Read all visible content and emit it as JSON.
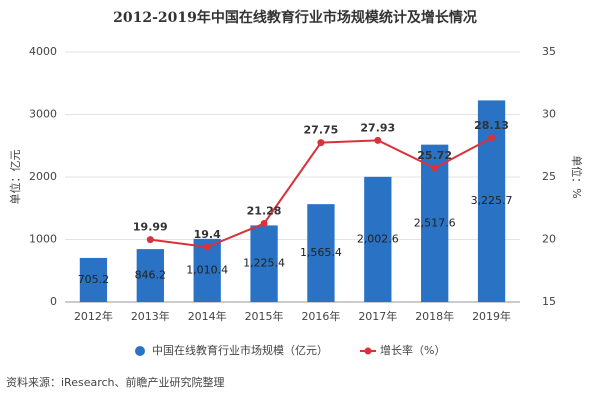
{
  "chart_data": {
    "type": "bar",
    "title": "2012-2019年中国在线教育行业市场规模统计及增长情况",
    "ylabel": "单位：亿元",
    "y2label": "单位：%",
    "categories": [
      "2012年",
      "2013年",
      "2014年",
      "2015年",
      "2016年",
      "2017年",
      "2018年",
      "2019年"
    ],
    "series": [
      {
        "name": "中国在线教育行业市场规模（亿元）",
        "color": "#2a72c4",
        "values": [
          705.2,
          846.2,
          1010.4,
          1225.4,
          1565.4,
          2002.6,
          2517.6,
          3225.7
        ],
        "value_labels": [
          "705.2",
          "846.2",
          "1,010.4",
          "1,225.4",
          "1,565.4",
          "2,002.6",
          "2,517.6",
          "3,225.7"
        ]
      },
      {
        "name": "增长率（%）",
        "color": "#d8323d",
        "type": "line",
        "axis": "y2",
        "values": [
          null,
          19.99,
          19.4,
          21.28,
          27.75,
          27.93,
          25.72,
          28.13
        ]
      }
    ],
    "ylim": [
      0,
      4000
    ],
    "yticks": [
      0,
      1000,
      2000,
      3000,
      4000
    ],
    "y2lim": [
      15,
      35
    ],
    "y2ticks": [
      15,
      20,
      25,
      30,
      35
    ],
    "grid": true,
    "source": "资料来源：iResearch、前瞻产业研究院整理"
  }
}
